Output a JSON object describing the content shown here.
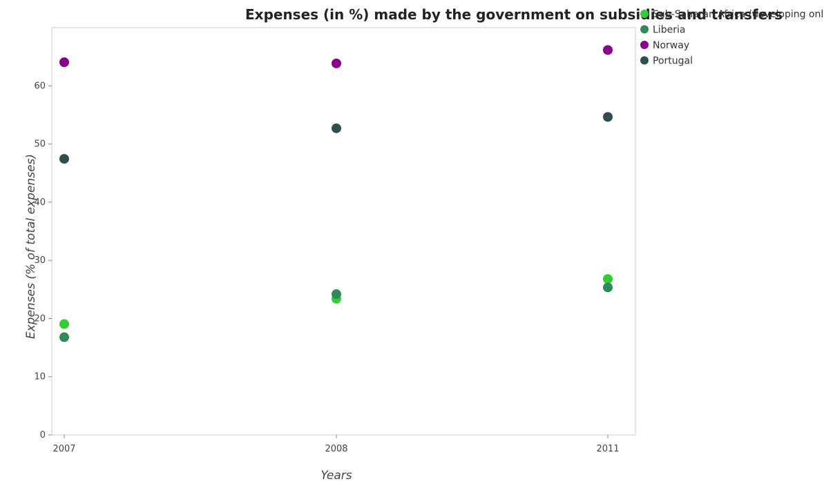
{
  "chart_data": {
    "type": "scatter",
    "title": "Expenses (in %) made by the government on subsidies and transfers",
    "xlabel": "Years",
    "ylabel": "Expenses (% of total expenses)",
    "categories": [
      "2007",
      "2008",
      "2011"
    ],
    "ylim": [
      0,
      70
    ],
    "yticks": [
      0,
      10,
      20,
      30,
      40,
      50,
      60
    ],
    "grid": false,
    "legend_position": "top-right",
    "series": [
      {
        "name": "Sub-Saharan Africa (developing only)",
        "color": "#32cd32",
        "values": [
          19.05,
          23.4,
          26.8
        ]
      },
      {
        "name": "Liberia",
        "color": "#2e8b57",
        "values": [
          16.8,
          24.2,
          25.35
        ]
      },
      {
        "name": "Norway",
        "color": "#8b008b",
        "values": [
          64.05,
          63.85,
          66.15
        ]
      },
      {
        "name": "Portugal",
        "color": "#2f4f4f",
        "values": [
          47.45,
          52.7,
          54.65
        ]
      }
    ]
  }
}
